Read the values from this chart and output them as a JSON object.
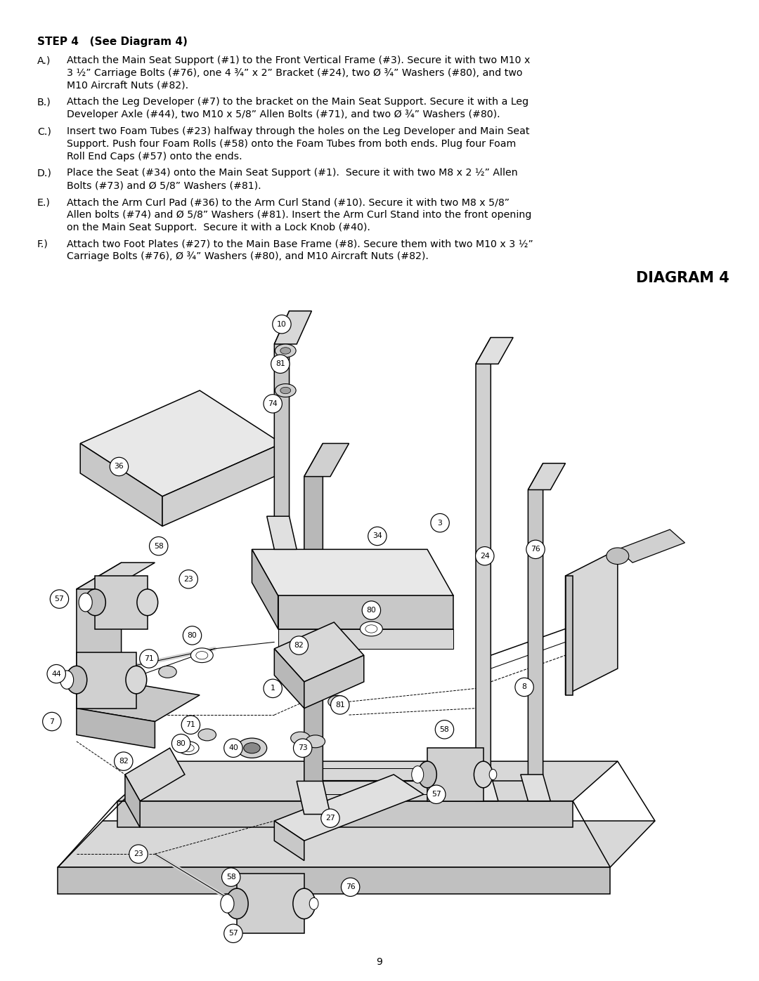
{
  "background_color": "#ffffff",
  "page_width": 10.8,
  "page_height": 13.97,
  "title": "STEP 4   (See Diagram 4)",
  "diagram_title": "DIAGRAM 4",
  "page_number": "9",
  "instructions": [
    {
      "label": "A.)",
      "lines": [
        "Attach the Main Seat Support (#1) to the Front Vertical Frame (#3). Secure it with two M10 x",
        "3 ½” Carriage Bolts (#76), one 4 ¾” x 2” Bracket (#24), two Ø ¾” Washers (#80), and two",
        "M10 Aircraft Nuts (#82)."
      ]
    },
    {
      "label": "B.)",
      "lines": [
        "Attach the Leg Developer (#7) to the bracket on the Main Seat Support. Secure it with a Leg",
        "Developer Axle (#44), two M10 x 5/8” Allen Bolts (#71), and two Ø ¾” Washers (#80)."
      ]
    },
    {
      "label": "C.)",
      "lines": [
        "Insert two Foam Tubes (#23) halfway through the holes on the Leg Developer and Main Seat",
        "Support. Push four Foam Rolls (#58) onto the Foam Tubes from both ends. Plug four Foam",
        "Roll End Caps (#57) onto the ends."
      ]
    },
    {
      "label": "D.)",
      "lines": [
        "Place the Seat (#34) onto the Main Seat Support (#1).  Secure it with two M8 x 2 ½” Allen",
        "Bolts (#73) and Ø 5/8” Washers (#81)."
      ]
    },
    {
      "label": "E.)",
      "lines": [
        "Attach the Arm Curl Pad (#36) to the Arm Curl Stand (#10). Secure it with two M8 x 5/8”",
        "Allen bolts (#74) and Ø 5/8” Washers (#81). Insert the Arm Curl Stand into the front opening",
        "on the Main Seat Support.  Secure it with a Lock Knob (#40)."
      ]
    },
    {
      "label": "F.)",
      "lines": [
        "Attach two Foot Plates (#27) to the Main Base Frame (#8). Secure them with two M10 x 3 ½”",
        "Carriage Bolts (#76), Ø ¾” Washers (#80), and M10 Aircraft Nuts (#82)."
      ]
    }
  ],
  "title_fontsize": 11.0,
  "body_fontsize": 10.2,
  "diagram_title_fontsize": 15,
  "label_fontsize": 7.8
}
